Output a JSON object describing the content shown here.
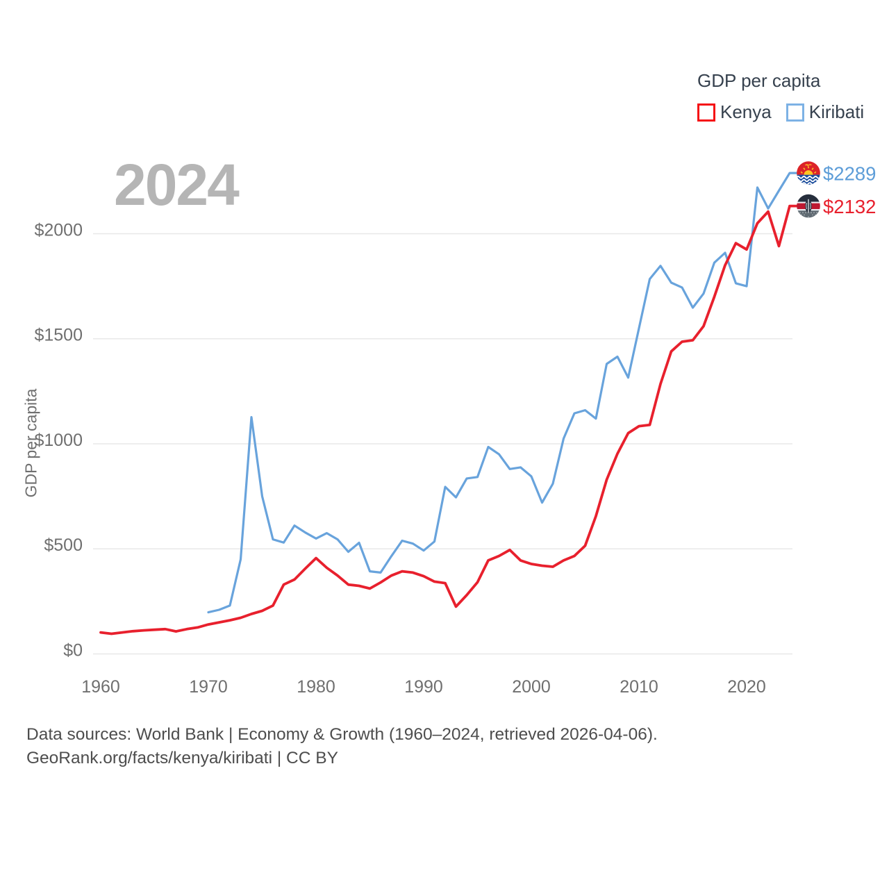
{
  "watermark_year": "2024",
  "legend": {
    "title": "GDP per capita",
    "series": [
      {
        "label": "Kenya",
        "swatch_color": "#f50f14"
      },
      {
        "label": "Kiribati",
        "swatch_color": "#7db2e5"
      }
    ]
  },
  "y_axis": {
    "title": "GDP per capita"
  },
  "source": {
    "line1": "Data sources: World Bank | Economy & Growth (1960–2024, retrieved 2026-04-06).",
    "line2": "GeoRank.org/facts/kenya/kiribati | CC BY"
  },
  "colors": {
    "kenya_line": "#e8202d",
    "kiribati_line": "#68a3dc",
    "grid": "#e8e8e8",
    "tick_text": "#6f6f6f",
    "watermark": "#b5b5b5"
  },
  "chart_data": {
    "type": "line",
    "title": "GDP per capita",
    "ylabel": "GDP per capita",
    "xlabel": "",
    "grid": "horizontal",
    "legend_position": "top-right",
    "x_range": [
      1960,
      2024
    ],
    "y_range": [
      0,
      2300
    ],
    "x_ticks": {
      "values": [
        1960,
        1970,
        1980,
        1990,
        2000,
        2010,
        2020
      ],
      "labels": [
        "1960",
        "1970",
        "1980",
        "1990",
        "2000",
        "2010",
        "2020"
      ]
    },
    "y_ticks": {
      "values": [
        0,
        500,
        1000,
        1500,
        2000
      ],
      "labels": [
        "$0",
        "$500",
        "$1000",
        "$1500",
        "$2000"
      ]
    },
    "x": [
      1960,
      1961,
      1962,
      1963,
      1964,
      1965,
      1966,
      1967,
      1968,
      1969,
      1970,
      1971,
      1972,
      1973,
      1974,
      1975,
      1976,
      1977,
      1978,
      1979,
      1980,
      1981,
      1982,
      1983,
      1984,
      1985,
      1986,
      1987,
      1988,
      1989,
      1990,
      1991,
      1992,
      1993,
      1994,
      1995,
      1996,
      1997,
      1998,
      1999,
      2000,
      2001,
      2002,
      2003,
      2004,
      2005,
      2006,
      2007,
      2008,
      2009,
      2010,
      2011,
      2012,
      2013,
      2014,
      2015,
      2016,
      2017,
      2018,
      2019,
      2020,
      2021,
      2022,
      2023,
      2024
    ],
    "series": [
      {
        "name": "Kiribati",
        "color": "#68a3dc",
        "end_label": "$2289",
        "end_label_color": "#5d9dd8",
        "end_value": 2289,
        "flag": "kiribati",
        "stroke_width": 3.2,
        "values": [
          null,
          null,
          null,
          null,
          null,
          null,
          null,
          null,
          null,
          null,
          198,
          210,
          230,
          450,
          1127,
          750,
          545,
          530,
          611,
          578,
          549,
          575,
          545,
          486,
          529,
          393,
          387,
          465,
          539,
          525,
          492,
          535,
          795,
          745,
          835,
          842,
          985,
          950,
          880,
          888,
          845,
          720,
          810,
          1025,
          1145,
          1160,
          1120,
          1380,
          1415,
          1315,
          1550,
          1784,
          1847,
          1767,
          1744,
          1648,
          1715,
          1862,
          1909,
          1764,
          1750,
          2220,
          2120,
          2205,
          2289
        ]
      },
      {
        "name": "Kenya",
        "color": "#e8202d",
        "end_label": "$2132",
        "end_label_color": "#e8202d",
        "end_value": 2132,
        "flag": "kenya",
        "stroke_width": 3.8,
        "values": [
          102,
          96,
          102,
          108,
          112,
          115,
          118,
          107,
          118,
          126,
          140,
          150,
          160,
          172,
          190,
          205,
          230,
          330,
          354,
          406,
          456,
          410,
          373,
          330,
          324,
          311,
          340,
          373,
          393,
          387,
          370,
          344,
          337,
          225,
          280,
          341,
          445,
          466,
          495,
          445,
          428,
          420,
          415,
          445,
          466,
          515,
          656,
          829,
          953,
          1051,
          1084,
          1090,
          1285,
          1440,
          1486,
          1493,
          1560,
          1700,
          1850,
          1955,
          1925,
          2050,
          2105,
          1941,
          2132
        ]
      }
    ]
  }
}
